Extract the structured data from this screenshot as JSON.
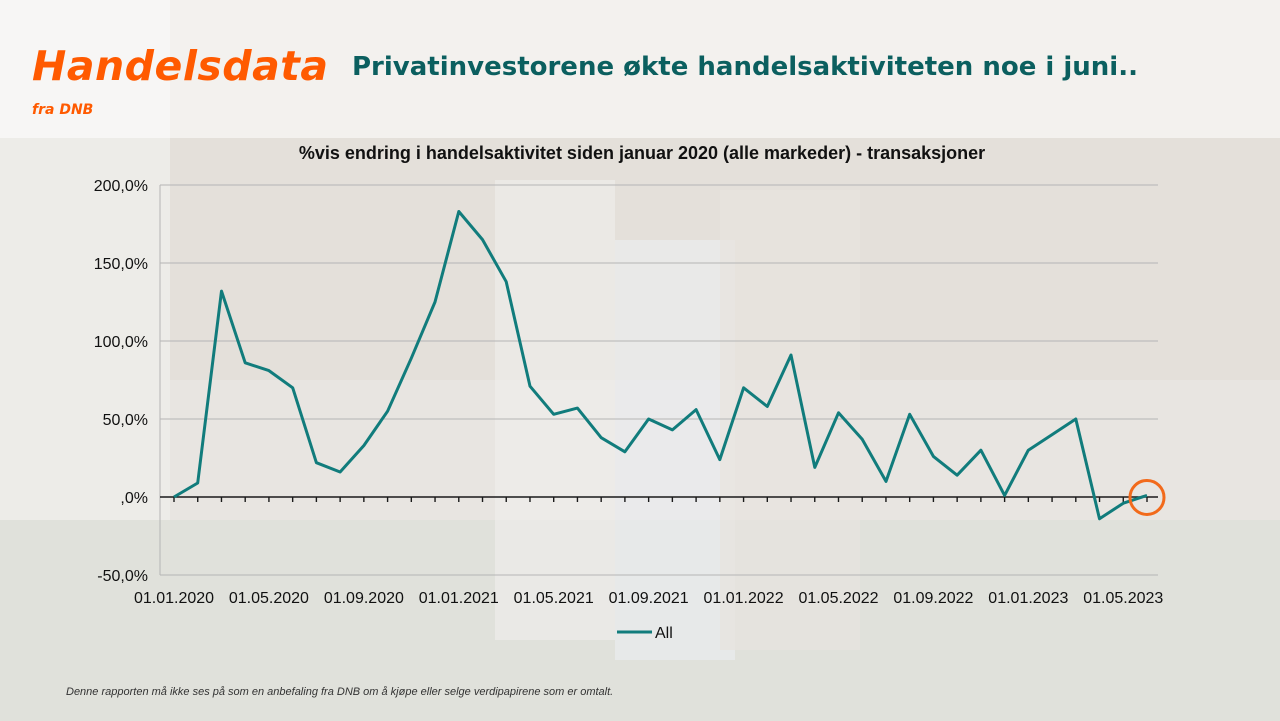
{
  "brand": {
    "title": "Handelsdata",
    "subtitle": "fra DNB"
  },
  "headline": "Privatinvestorene økte handelsaktiviteten noe i juni..",
  "footnote": "Denne rapporten må ikke ses på som en anbefaling fra DNB om å kjøpe eller selge verdipapirene som er omtalt.",
  "colors": {
    "brand_orange": "#ff5a00",
    "headline_teal": "#0b5f5f",
    "series_teal": "#117c7c",
    "highlight_circle": "#f26a1b"
  },
  "chart_data": {
    "type": "line",
    "title": "%vis endring i handelsaktivitet siden januar 2020 (alle markeder) - transaksjoner",
    "ylim": [
      -50,
      200
    ],
    "yticks": [
      -50,
      0,
      50,
      100,
      150,
      200
    ],
    "ytick_labels": [
      "-50,0%",
      ",0%",
      "50,0%",
      "100,0%",
      "150,0%",
      "200,0%"
    ],
    "xtick_labels": [
      "01.01.2020",
      "01.05.2020",
      "01.09.2020",
      "01.01.2021",
      "01.05.2021",
      "01.09.2021",
      "01.01.2022",
      "01.05.2022",
      "01.09.2022",
      "01.01.2023",
      "01.05.2023"
    ],
    "grid": true,
    "legend": "bottom",
    "x": [
      "01.01.2020",
      "01.02.2020",
      "01.03.2020",
      "01.04.2020",
      "01.05.2020",
      "01.06.2020",
      "01.07.2020",
      "01.08.2020",
      "01.09.2020",
      "01.10.2020",
      "01.11.2020",
      "01.12.2020",
      "01.01.2021",
      "01.02.2021",
      "01.03.2021",
      "01.04.2021",
      "01.05.2021",
      "01.06.2021",
      "01.07.2021",
      "01.08.2021",
      "01.09.2021",
      "01.10.2021",
      "01.11.2021",
      "01.12.2021",
      "01.01.2022",
      "01.02.2022",
      "01.03.2022",
      "01.04.2022",
      "01.05.2022",
      "01.06.2022",
      "01.07.2022",
      "01.08.2022",
      "01.09.2022",
      "01.10.2022",
      "01.11.2022",
      "01.12.2022",
      "01.01.2023",
      "01.02.2023",
      "01.03.2023",
      "01.04.2023",
      "01.05.2023",
      "01.06.2023"
    ],
    "series": [
      {
        "name": "All",
        "values": [
          0,
          9,
          132,
          86,
          81,
          70,
          22,
          16,
          33,
          55,
          89,
          125,
          183,
          165,
          138,
          71,
          53,
          57,
          38,
          29,
          50,
          43,
          56,
          24,
          70,
          58,
          91,
          19,
          54,
          37,
          10,
          53,
          26,
          14,
          30,
          1,
          30,
          40,
          50,
          -14,
          -4,
          1
        ]
      }
    ],
    "highlight": {
      "x": "01.06.2023",
      "y": 1
    }
  }
}
